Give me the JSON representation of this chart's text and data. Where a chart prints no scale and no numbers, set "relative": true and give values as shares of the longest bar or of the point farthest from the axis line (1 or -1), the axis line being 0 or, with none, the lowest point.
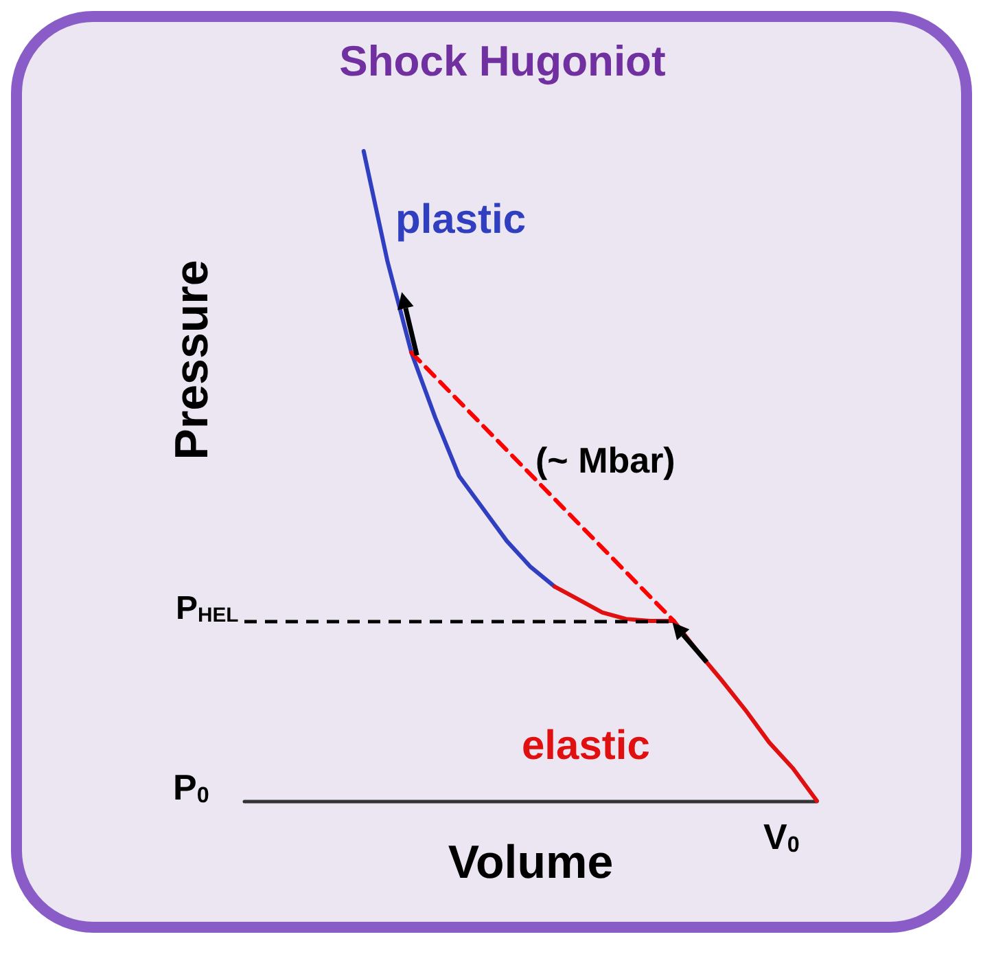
{
  "chart_data": {
    "type": "line",
    "title": "Shock Hugoniot",
    "xlabel": "Volume",
    "ylabel": "Pressure",
    "relative": true,
    "grid": false,
    "legend": false,
    "marker": "none",
    "categories": [
      null,
      null,
      null,
      null,
      null,
      null,
      null,
      null,
      null,
      null,
      null,
      null,
      null,
      null,
      null,
      null,
      null,
      null,
      null,
      null,
      null,
      null,
      null,
      null,
      null
    ],
    "series": [
      {
        "name": "plastic",
        "color": "#2f3fc0",
        "line_style": "solid",
        "values": [
          null,
          null,
          null,
          null,
          null,
          1.0,
          0.83,
          0.69,
          0.59,
          0.5,
          0.45,
          0.4,
          0.36,
          0.33,
          null,
          null,
          null,
          null,
          null,
          null,
          null,
          null,
          null,
          null,
          null
        ]
      },
      {
        "name": "elastic",
        "color": "#e01010",
        "line_style": "solid",
        "values": [
          null,
          null,
          null,
          null,
          null,
          null,
          null,
          null,
          null,
          null,
          null,
          null,
          null,
          0.33,
          0.31,
          0.29,
          0.28,
          0.277,
          0.277,
          0.23,
          0.186,
          0.14,
          0.09,
          0.05,
          0
        ]
      },
      {
        "color": "#ff0000",
        "line_style": "dashed",
        "values": [
          null,
          null,
          null,
          null,
          null,
          null,
          null,
          0.69,
          null,
          null,
          null,
          null,
          null,
          null,
          null,
          null,
          null,
          null,
          0.277,
          null,
          null,
          null,
          null,
          null,
          null
        ]
      }
    ],
    "ref_lines": [
      {
        "axis": "y",
        "value": 0.277,
        "label": "P$_{HEL}$",
        "color": "#000000",
        "line_style": "dashed"
      }
    ],
    "annotations": [
      "P$_{0}$",
      "V$_{0}$",
      "(~ Mbar)"
    ]
  }
}
